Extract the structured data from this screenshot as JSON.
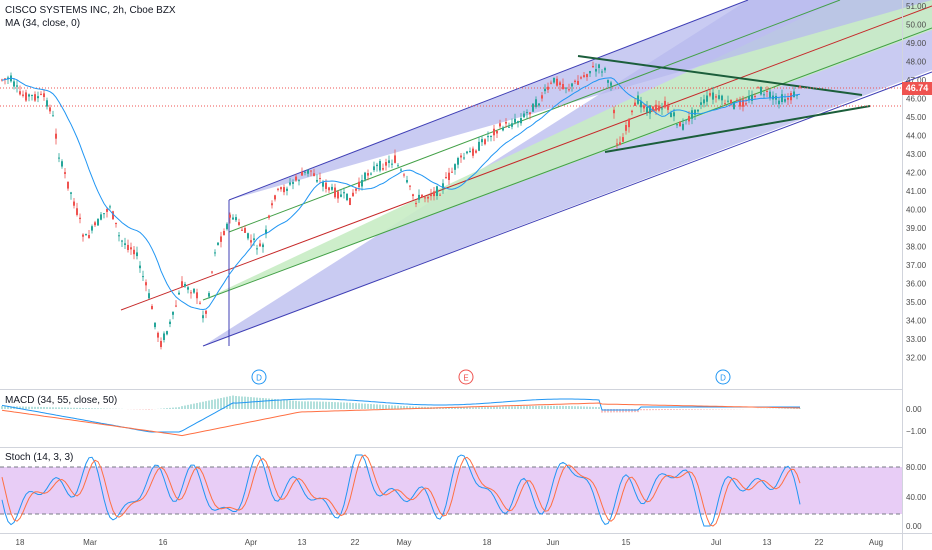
{
  "header": {
    "symbol_title": "CISCO SYSTEMS INC, 2h, Cboe BZX",
    "ma_label": "MA (34, close, 0)"
  },
  "price_axis": {
    "ticks": [
      "51.00",
      "50.00",
      "49.00",
      "48.00",
      "47.00",
      "46.00",
      "45.00",
      "44.00",
      "43.00",
      "42.00",
      "41.00",
      "40.00",
      "39.00",
      "38.00",
      "37.00",
      "36.00",
      "35.00",
      "34.00",
      "33.00",
      "32.00"
    ],
    "current_price": "46.74"
  },
  "time_axis": {
    "labels": [
      "18",
      "Mar",
      "16",
      "Apr",
      "13",
      "22",
      "May",
      "18",
      "Jun",
      "15",
      "Jul",
      "13",
      "22",
      "Aug"
    ]
  },
  "event_markers": [
    "D",
    "E",
    "D"
  ],
  "macd": {
    "label": "MACD (34, 55, close, 50)",
    "ticks": [
      "0.00",
      "−1.00"
    ]
  },
  "stoch": {
    "label": "Stoch (14, 3, 3)",
    "ticks": [
      "80.00",
      "40.00",
      "0.00"
    ]
  },
  "colors": {
    "up": "#26a69a",
    "down": "#ef5350",
    "ma": "#2196f3",
    "channel_outer_fill": "#b7b9ee",
    "channel_inner_fill": "#c8ecc4",
    "stoch_band": "#e6c8f5",
    "macd_line": "#2196f3",
    "signal_line": "#ff7043"
  }
}
